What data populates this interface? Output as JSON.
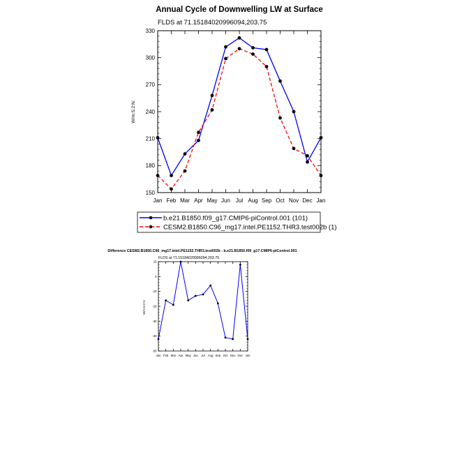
{
  "page": {
    "background": "#ffffff"
  },
  "chart_data": [
    {
      "type": "line",
      "title": "Annual Cycle of Downwelling LW at Surface",
      "subtitle": "FLDS at 71.15184020996094,203.75",
      "xlabel": "",
      "ylabel": "W/m:S:2:N:",
      "categories": [
        "Jan",
        "Feb",
        "Mar",
        "Apr",
        "May",
        "Jun",
        "Jul",
        "Aug",
        "Sep",
        "Oct",
        "Nov",
        "Dec",
        "Jan"
      ],
      "ylim": [
        150,
        330
      ],
      "yticks": [
        150,
        180,
        210,
        240,
        270,
        300,
        330
      ],
      "grid": false,
      "legend": "below",
      "series": [
        {
          "name": "b.e21.B1850.f09_g17.CMIP6-piControl.001 (101)",
          "color": "#0000ff",
          "dash": "solid",
          "values": [
            211,
            169,
            193,
            208,
            258,
            312,
            322,
            311,
            309,
            274,
            240,
            184,
            211
          ]
        },
        {
          "name": "CESM2.B1850.C96_mg17.intel.PE1152.THR3.test002b (1)",
          "color": "#ff0000",
          "dash": "dashed",
          "values": [
            169,
            154,
            174,
            217,
            242,
            299,
            310,
            304,
            290,
            233,
            199,
            191,
            169
          ]
        }
      ]
    },
    {
      "type": "line",
      "title": "Difference CESM2.B1850.C96_mg17.intel.PE1152.THR3.test002b - b.e21.B1850.f09_g17.CMIP6-piControl.001",
      "subtitle": "FLDS at 71.15184020996094,203.75",
      "xlabel": "",
      "ylabel": "W/m:S:2:N:",
      "categories": [
        "Jan",
        "Feb",
        "Mar",
        "Apr",
        "May",
        "Jun",
        "Jul",
        "Aug",
        "Sep",
        "Oct",
        "Nov",
        "Dec",
        "Jan"
      ],
      "ylim": [
        -50,
        10
      ],
      "yticks": [
        -50,
        -40,
        -30,
        -20,
        -10,
        0,
        10
      ],
      "grid": false,
      "series": [
        {
          "color": "#0000ff",
          "dash": "solid",
          "values": [
            -42,
            -16,
            -19,
            10,
            -16,
            -13,
            -12,
            -6,
            -18,
            -41,
            -42,
            8,
            -42
          ]
        }
      ]
    }
  ]
}
